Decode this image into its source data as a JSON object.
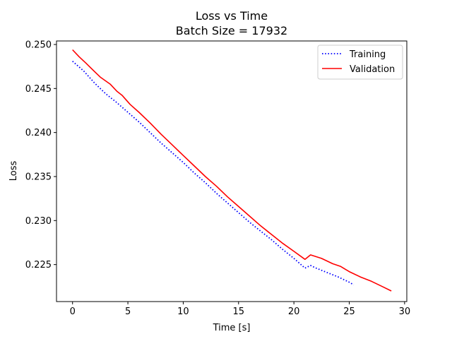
{
  "chart_data": {
    "type": "line",
    "title": "Loss vs Time",
    "subtitle": "Batch Size = 17932",
    "xlabel": "Time [s]",
    "ylabel": "Loss",
    "xlim": [
      -1.45,
      30.2
    ],
    "ylim": [
      0.2208,
      0.2504
    ],
    "xticks": [
      0,
      5,
      10,
      15,
      20,
      25,
      30
    ],
    "xtick_labels": [
      "0",
      "5",
      "10",
      "15",
      "20",
      "25",
      "30"
    ],
    "yticks": [
      0.225,
      0.23,
      0.235,
      0.24,
      0.245,
      0.25
    ],
    "ytick_labels": [
      "0.225",
      "0.230",
      "0.235",
      "0.240",
      "0.245",
      "0.250"
    ],
    "grid": false,
    "legend_position": "top-right",
    "series": [
      {
        "name": "Training",
        "color": "#0000ff",
        "linestyle": "dotted",
        "x": [
          0,
          1.0,
          2.0,
          3.0,
          4.0,
          5.0,
          6.0,
          7.0,
          8.0,
          9.0,
          10.0,
          11.0,
          12.0,
          13.0,
          14.0,
          15.0,
          16.0,
          17.0,
          18.0,
          19.0,
          20.0,
          21.0,
          21.5,
          22.0,
          23.0,
          24.0,
          25.0,
          25.4
        ],
        "y": [
          0.2481,
          0.247,
          0.2456,
          0.2444,
          0.2434,
          0.2423,
          0.2412,
          0.24,
          0.2388,
          0.2377,
          0.2366,
          0.2354,
          0.2343,
          0.2331,
          0.232,
          0.2309,
          0.2298,
          0.2288,
          0.2278,
          0.2267,
          0.2257,
          0.2246,
          0.2249,
          0.2246,
          0.2241,
          0.2236,
          0.223,
          0.2227
        ]
      },
      {
        "name": "Validation",
        "color": "#ff0000",
        "linestyle": "solid",
        "x": [
          0,
          0.6,
          1.2,
          2.0,
          2.5,
          3.4,
          4.0,
          4.5,
          5.2,
          6.0,
          7.0,
          8.0,
          9.0,
          10.0,
          11.0,
          12.0,
          13.0,
          14.0,
          15.0,
          16.0,
          17.0,
          18.0,
          19.0,
          20.0,
          21.0,
          21.5,
          22.5,
          23.5,
          24.2,
          25.0,
          26.0,
          27.0,
          28.0,
          28.8
        ],
        "y": [
          0.2494,
          0.2486,
          0.2479,
          0.2469,
          0.2463,
          0.2455,
          0.2447,
          0.2442,
          0.2432,
          0.2423,
          0.2411,
          0.2398,
          0.2386,
          0.2374,
          0.2362,
          0.235,
          0.2339,
          0.2327,
          0.2316,
          0.2305,
          0.2294,
          0.2284,
          0.2274,
          0.2265,
          0.2256,
          0.2261,
          0.2257,
          0.2251,
          0.2248,
          0.2242,
          0.2236,
          0.2231,
          0.2225,
          0.222
        ]
      }
    ]
  }
}
